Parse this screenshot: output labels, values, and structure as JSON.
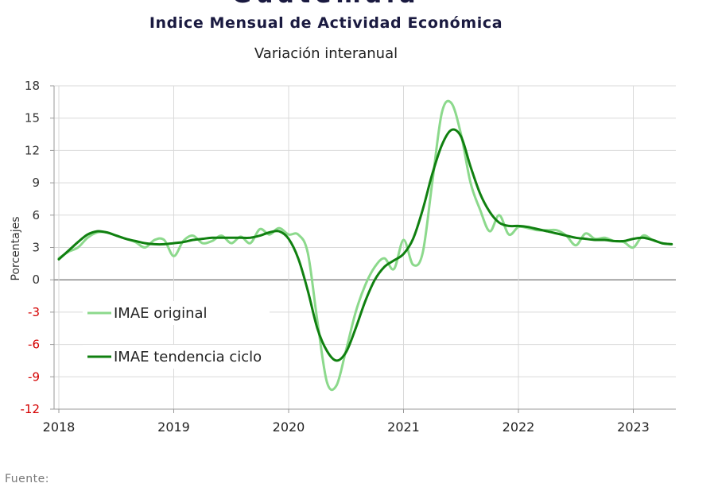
{
  "header": {
    "clipped_title": "Guatemala",
    "title": "Indice Mensual de  Actividad Económica",
    "subtitle": "Variación interanual"
  },
  "footer": {
    "source": "Fuente:"
  },
  "chart_data": {
    "type": "line",
    "title": "Indice Mensual de  Actividad Económica",
    "subtitle": "Variación interanual",
    "xlabel": "",
    "ylabel": "Porcentajes",
    "ylim": [
      -12,
      18
    ],
    "yticks": [
      "18",
      "15",
      "12",
      "9",
      "6",
      "3",
      "0",
      "-3",
      "-6",
      "-9",
      "-12"
    ],
    "xticks": [
      "2018",
      "2019",
      "2020",
      "2021",
      "2022",
      "2023"
    ],
    "xlim": [
      "2018-01",
      "2023-06"
    ],
    "grid": true,
    "legend_position": "bottom-left",
    "series": [
      {
        "name": "IMAE original",
        "color": "#8cd98c",
        "points": [
          [
            "2018-01",
            2.0
          ],
          [
            "2018-02",
            2.6
          ],
          [
            "2018-03",
            3.0
          ],
          [
            "2018-04",
            3.9
          ],
          [
            "2018-05",
            4.4
          ],
          [
            "2018-06",
            4.4
          ],
          [
            "2018-07",
            4.1
          ],
          [
            "2018-08",
            3.8
          ],
          [
            "2018-09",
            3.5
          ],
          [
            "2018-10",
            3.0
          ],
          [
            "2018-11",
            3.7
          ],
          [
            "2018-12",
            3.7
          ],
          [
            "2019-01",
            2.2
          ],
          [
            "2019-02",
            3.6
          ],
          [
            "2019-03",
            4.1
          ],
          [
            "2019-04",
            3.4
          ],
          [
            "2019-05",
            3.6
          ],
          [
            "2019-06",
            4.1
          ],
          [
            "2019-07",
            3.4
          ],
          [
            "2019-08",
            4.0
          ],
          [
            "2019-09",
            3.4
          ],
          [
            "2019-10",
            4.7
          ],
          [
            "2019-11",
            4.2
          ],
          [
            "2019-12",
            4.8
          ],
          [
            "2020-01",
            4.2
          ],
          [
            "2020-02",
            4.2
          ],
          [
            "2020-03",
            2.5
          ],
          [
            "2020-04",
            -3.8
          ],
          [
            "2020-05",
            -9.5
          ],
          [
            "2020-06",
            -9.8
          ],
          [
            "2020-07",
            -6.5
          ],
          [
            "2020-08",
            -3.0
          ],
          [
            "2020-09",
            -0.5
          ],
          [
            "2020-10",
            1.2
          ],
          [
            "2020-11",
            2.0
          ],
          [
            "2020-12",
            1.0
          ],
          [
            "2021-01",
            3.7
          ],
          [
            "2021-02",
            1.4
          ],
          [
            "2021-03",
            2.5
          ],
          [
            "2021-04",
            9.0
          ],
          [
            "2021-05",
            15.5
          ],
          [
            "2021-06",
            16.4
          ],
          [
            "2021-07",
            13.5
          ],
          [
            "2021-08",
            9.0
          ],
          [
            "2021-09",
            6.5
          ],
          [
            "2021-10",
            4.5
          ],
          [
            "2021-11",
            6.0
          ],
          [
            "2021-12",
            4.2
          ],
          [
            "2022-01",
            4.9
          ],
          [
            "2022-02",
            4.8
          ],
          [
            "2022-03",
            4.6
          ],
          [
            "2022-04",
            4.6
          ],
          [
            "2022-05",
            4.6
          ],
          [
            "2022-06",
            4.1
          ],
          [
            "2022-07",
            3.2
          ],
          [
            "2022-08",
            4.3
          ],
          [
            "2022-09",
            3.8
          ],
          [
            "2022-10",
            3.9
          ],
          [
            "2022-11",
            3.6
          ],
          [
            "2022-12",
            3.5
          ],
          [
            "2023-01",
            3.0
          ],
          [
            "2023-02",
            4.1
          ],
          [
            "2023-03",
            3.7
          ],
          [
            "2023-04",
            3.4
          ],
          [
            "2023-05",
            3.3
          ]
        ]
      },
      {
        "name": "IMAE tendencia ciclo",
        "color": "#108010",
        "points": [
          [
            "2018-01",
            1.9
          ],
          [
            "2018-02",
            2.7
          ],
          [
            "2018-03",
            3.5
          ],
          [
            "2018-04",
            4.2
          ],
          [
            "2018-05",
            4.5
          ],
          [
            "2018-06",
            4.4
          ],
          [
            "2018-07",
            4.1
          ],
          [
            "2018-08",
            3.8
          ],
          [
            "2018-09",
            3.6
          ],
          [
            "2018-10",
            3.4
          ],
          [
            "2018-11",
            3.3
          ],
          [
            "2018-12",
            3.3
          ],
          [
            "2019-01",
            3.4
          ],
          [
            "2019-02",
            3.5
          ],
          [
            "2019-03",
            3.7
          ],
          [
            "2019-04",
            3.8
          ],
          [
            "2019-05",
            3.9
          ],
          [
            "2019-06",
            3.9
          ],
          [
            "2019-07",
            3.9
          ],
          [
            "2019-08",
            3.9
          ],
          [
            "2019-09",
            3.9
          ],
          [
            "2019-10",
            4.1
          ],
          [
            "2019-11",
            4.4
          ],
          [
            "2019-12",
            4.5
          ],
          [
            "2020-01",
            3.8
          ],
          [
            "2020-02",
            2.0
          ],
          [
            "2020-03",
            -1.0
          ],
          [
            "2020-04",
            -4.5
          ],
          [
            "2020-05",
            -6.6
          ],
          [
            "2020-06",
            -7.5
          ],
          [
            "2020-07",
            -6.7
          ],
          [
            "2020-08",
            -4.5
          ],
          [
            "2020-09",
            -2.0
          ],
          [
            "2020-10",
            0.0
          ],
          [
            "2020-11",
            1.2
          ],
          [
            "2020-12",
            1.8
          ],
          [
            "2021-01",
            2.4
          ],
          [
            "2021-02",
            3.8
          ],
          [
            "2021-03",
            6.5
          ],
          [
            "2021-04",
            9.8
          ],
          [
            "2021-05",
            12.5
          ],
          [
            "2021-06",
            13.9
          ],
          [
            "2021-07",
            13.3
          ],
          [
            "2021-08",
            10.5
          ],
          [
            "2021-09",
            8.0
          ],
          [
            "2021-10",
            6.3
          ],
          [
            "2021-11",
            5.3
          ],
          [
            "2021-12",
            5.0
          ],
          [
            "2022-01",
            5.0
          ],
          [
            "2022-02",
            4.9
          ],
          [
            "2022-03",
            4.7
          ],
          [
            "2022-04",
            4.5
          ],
          [
            "2022-05",
            4.3
          ],
          [
            "2022-06",
            4.1
          ],
          [
            "2022-07",
            3.9
          ],
          [
            "2022-08",
            3.8
          ],
          [
            "2022-09",
            3.7
          ],
          [
            "2022-10",
            3.7
          ],
          [
            "2022-11",
            3.6
          ],
          [
            "2022-12",
            3.6
          ],
          [
            "2023-01",
            3.8
          ],
          [
            "2023-02",
            3.9
          ],
          [
            "2023-03",
            3.7
          ],
          [
            "2023-04",
            3.4
          ],
          [
            "2023-05",
            3.3
          ]
        ]
      }
    ]
  }
}
